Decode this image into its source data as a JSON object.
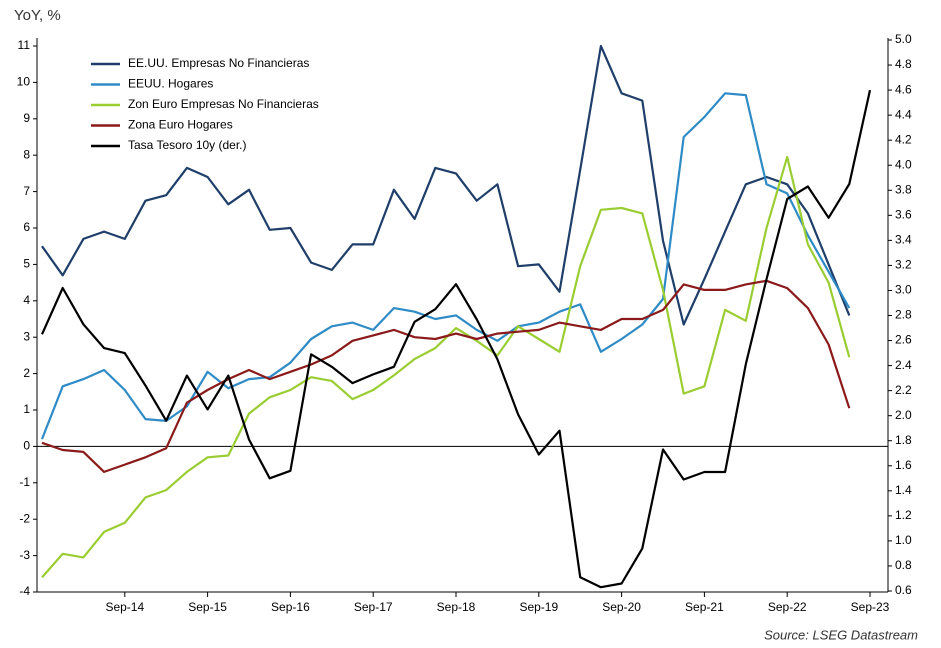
{
  "chart_data": {
    "type": "line",
    "ylabel": "YoY, %",
    "source": "Source: LSEG Datastream",
    "categories": [
      null,
      null,
      null,
      null,
      "Sep-14",
      null,
      null,
      null,
      "Sep-15",
      null,
      null,
      null,
      "Sep-16",
      null,
      null,
      null,
      "Sep-17",
      null,
      null,
      null,
      "Sep-18",
      null,
      null,
      null,
      "Sep-19",
      null,
      null,
      null,
      "Sep-20",
      null,
      null,
      null,
      "Sep-21",
      null,
      null,
      null,
      "Sep-22",
      null,
      null,
      null,
      "Sep-23"
    ],
    "ylim": [
      -4,
      11
    ],
    "yticks": [
      -4,
      -3,
      -2,
      -1,
      0,
      1,
      2,
      3,
      4,
      5,
      6,
      7,
      8,
      9,
      10,
      11
    ],
    "y2lim": [
      0.6,
      5.0
    ],
    "y2ticks": [
      0.6,
      0.8,
      {
        "value": 1,
        "label": "1.0"
      },
      1.2,
      1.4,
      1.6,
      1.8,
      {
        "value": 2,
        "label": "2.0"
      },
      2.2,
      2.4,
      2.6,
      2.8,
      {
        "value": 3,
        "label": "3.0"
      },
      3.2,
      3.4,
      3.6,
      3.8,
      {
        "value": 4,
        "label": "4.0"
      },
      4.2,
      4.4,
      4.6,
      4.8,
      {
        "value": 5,
        "label": "5.0"
      }
    ],
    "legend": "upper left",
    "series": [
      {
        "name": "EE.UU. Empresas No Financieras",
        "color": "#1f3f6a",
        "values": [
          5.5,
          4.7,
          5.7,
          5.9,
          5.7,
          6.75,
          6.9,
          7.65,
          7.4,
          6.65,
          7.05,
          5.95,
          6.0,
          5.05,
          4.85,
          5.55,
          5.55,
          7.05,
          6.25,
          7.65,
          7.5,
          6.75,
          7.2,
          4.95,
          5.0,
          4.25,
          7.6,
          11.0,
          9.7,
          9.5,
          5.65,
          3.35,
          4.6,
          5.9,
          7.2,
          7.4,
          7.2,
          6.4,
          5.0,
          3.6,
          null
        ]
      },
      {
        "name": "EEUU. Hogares",
        "color": "#2e8bc6",
        "values": [
          0.2,
          1.65,
          1.85,
          2.1,
          1.55,
          0.75,
          0.7,
          1.1,
          2.05,
          1.6,
          1.85,
          1.9,
          2.3,
          2.95,
          3.3,
          3.4,
          3.2,
          3.8,
          3.7,
          3.5,
          3.6,
          3.2,
          2.9,
          3.3,
          3.4,
          3.7,
          3.9,
          2.6,
          2.95,
          3.35,
          4.05,
          8.5,
          9.05,
          9.7,
          9.65,
          7.2,
          6.95,
          5.8,
          4.8,
          3.8,
          null
        ]
      },
      {
        "name": "Zon Euro Empresas No Financieras",
        "color": "#9acd32",
        "values": [
          -3.6,
          -2.95,
          -3.05,
          -2.35,
          -2.1,
          -1.4,
          -1.2,
          -0.7,
          -0.3,
          -0.25,
          0.9,
          1.35,
          1.55,
          1.9,
          1.8,
          1.3,
          1.55,
          1.95,
          2.4,
          2.7,
          3.25,
          2.9,
          2.5,
          3.3,
          2.95,
          2.6,
          4.95,
          6.5,
          6.55,
          6.4,
          4.3,
          1.45,
          1.65,
          3.75,
          3.45,
          6.0,
          7.95,
          5.55,
          4.5,
          2.45,
          null
        ]
      },
      {
        "name": "Zona Euro Hogares",
        "color": "#8b1a1a",
        "values": [
          0.1,
          -0.1,
          -0.15,
          -0.7,
          -0.5,
          -0.3,
          -0.05,
          1.2,
          1.55,
          1.85,
          2.1,
          1.85,
          2.05,
          2.25,
          2.5,
          2.9,
          3.05,
          3.2,
          3.0,
          2.95,
          3.1,
          2.95,
          3.1,
          3.15,
          3.2,
          3.4,
          3.3,
          3.2,
          3.5,
          3.5,
          3.75,
          4.45,
          4.3,
          4.3,
          4.45,
          4.55,
          4.35,
          3.8,
          2.8,
          1.05,
          null
        ]
      },
      {
        "name": "Tasa Tesoro 10y (der.)",
        "color": "#000000",
        "axis": "y2",
        "values": [
          2.65,
          3.02,
          2.73,
          2.54,
          2.5,
          2.24,
          1.96,
          2.32,
          2.05,
          2.32,
          1.81,
          1.5,
          1.56,
          2.49,
          2.39,
          2.26,
          2.33,
          2.39,
          2.75,
          2.85,
          3.05,
          2.77,
          2.45,
          2.01,
          1.69,
          1.88,
          0.71,
          0.63,
          0.66,
          0.94,
          1.73,
          1.49,
          1.55,
          1.55,
          2.41,
          3.09,
          3.73,
          3.83,
          3.58,
          3.85,
          4.6
        ]
      }
    ]
  }
}
